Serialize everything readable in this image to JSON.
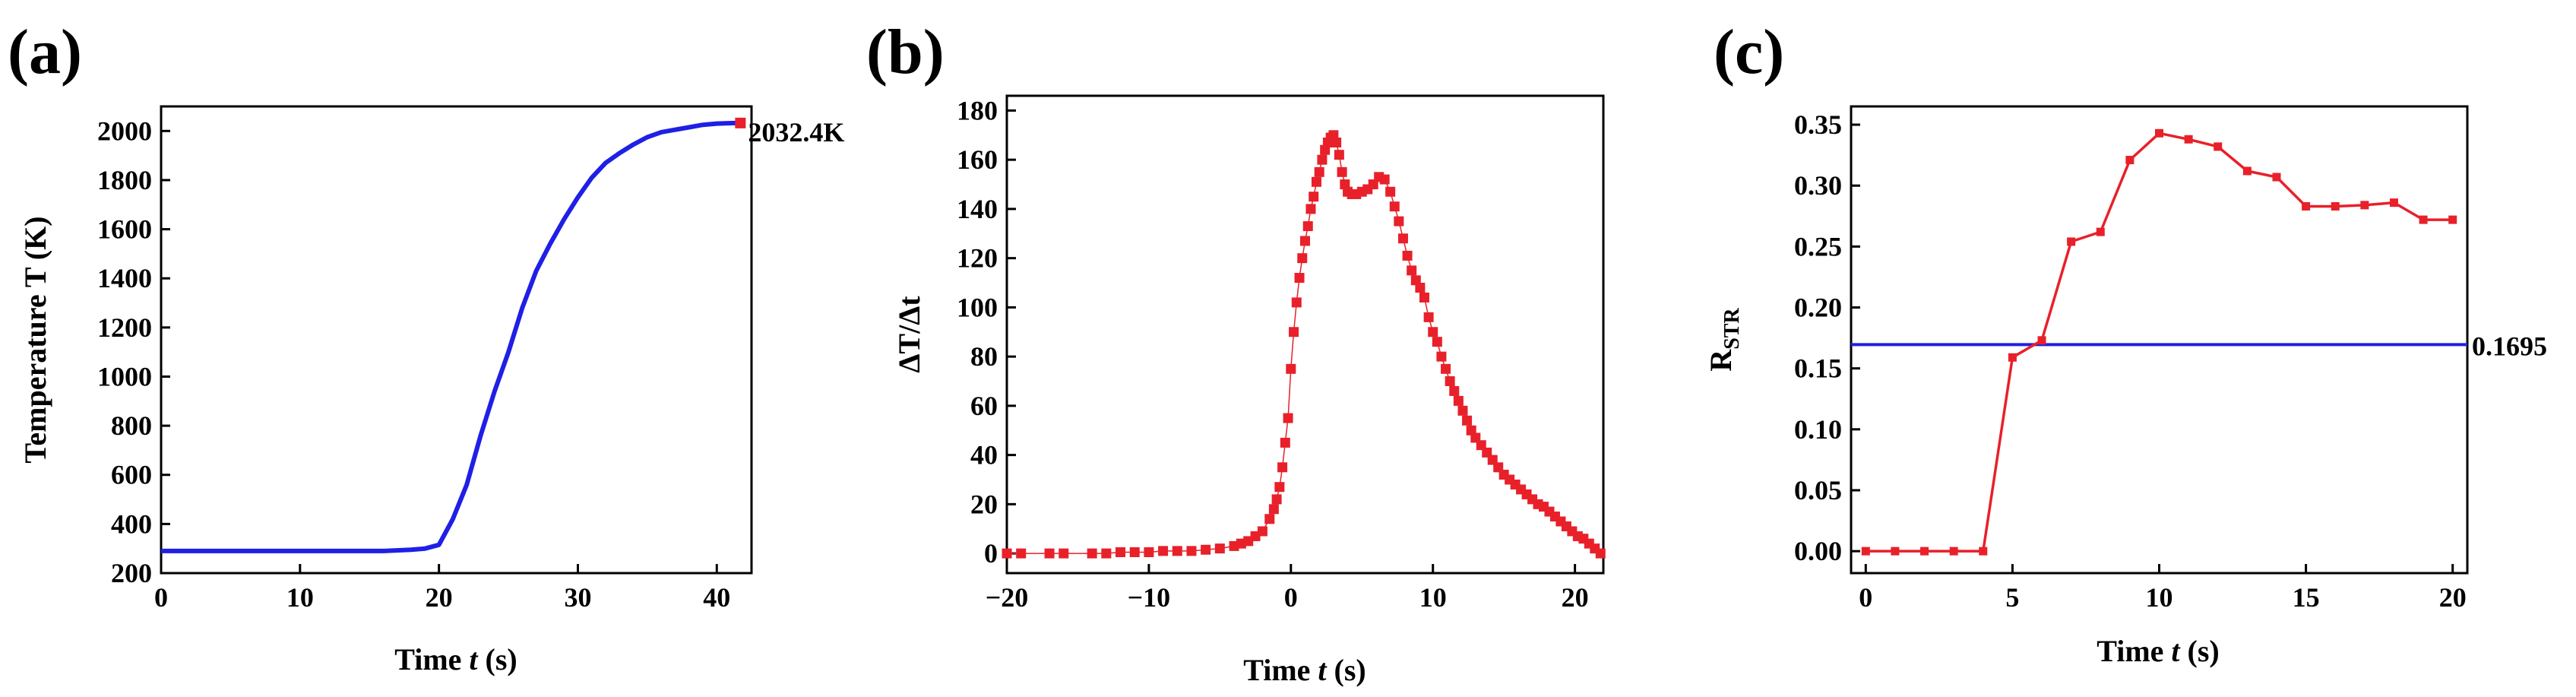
{
  "chart_data": [
    {
      "panel": "(a)",
      "type": "line",
      "xlabel_prefix": "Time ",
      "xlabel_var": "t",
      "xlabel_suffix": " (s)",
      "ylabel": "Temperature T (K)",
      "xlim": [
        0,
        42.5
      ],
      "ylim": [
        200,
        2100
      ],
      "xticks": [
        0,
        10,
        20,
        30,
        40
      ],
      "yticks": [
        200,
        400,
        600,
        800,
        1000,
        1200,
        1400,
        1600,
        1800,
        2000
      ],
      "color": "#1f1fe6",
      "marker_color": "#e8202a",
      "series": [
        {
          "name": "Temperature",
          "x": [
            0,
            2,
            4,
            6,
            8,
            10,
            12,
            14,
            16,
            18,
            19,
            20,
            21,
            22,
            23,
            24,
            25,
            26,
            27,
            28,
            29,
            30,
            31,
            32,
            33,
            34,
            35,
            36,
            37,
            38,
            39,
            40,
            41,
            41.7
          ],
          "y": [
            290,
            290,
            290,
            290,
            290,
            290,
            290,
            290,
            290,
            295,
            300,
            315,
            420,
            560,
            760,
            940,
            1100,
            1280,
            1430,
            1540,
            1640,
            1730,
            1810,
            1870,
            1910,
            1945,
            1975,
            1995,
            2005,
            2015,
            2025,
            2030,
            2032,
            2032.4
          ]
        }
      ],
      "annotation": {
        "x": 41.7,
        "y": 2032.4,
        "text": "2032.4K"
      }
    },
    {
      "panel": "(b)",
      "type": "scatter",
      "xlabel_prefix": "Time ",
      "xlabel_var": "t",
      "xlabel_suffix": " (s)",
      "ylabel": "ΔT/Δt",
      "xlim": [
        -20,
        22
      ],
      "ylim": [
        -8,
        186
      ],
      "xticks": [
        -20,
        -10,
        0,
        10,
        20
      ],
      "yticks": [
        0,
        20,
        40,
        60,
        80,
        100,
        120,
        140,
        160,
        180
      ],
      "color": "#e8202a",
      "series": [
        {
          "name": "ΔT/Δt",
          "x": [
            -20,
            -19,
            -17,
            -16,
            -14,
            -13,
            -12,
            -11,
            -10,
            -9,
            -8,
            -7,
            -6,
            -5,
            -4,
            -3.5,
            -3,
            -2.5,
            -2,
            -1.5,
            -1.2,
            -1,
            -0.8,
            -0.6,
            -0.4,
            -0.2,
            0,
            0.2,
            0.4,
            0.6,
            0.8,
            1,
            1.2,
            1.4,
            1.6,
            1.8,
            2,
            2.2,
            2.4,
            2.6,
            2.8,
            3,
            3.2,
            3.4,
            3.6,
            3.8,
            4,
            4.3,
            4.6,
            5,
            5.4,
            5.8,
            6.2,
            6.6,
            7,
            7.3,
            7.6,
            7.9,
            8.2,
            8.5,
            8.8,
            9.1,
            9.4,
            9.7,
            10,
            10.3,
            10.6,
            10.9,
            11.2,
            11.5,
            11.8,
            12.1,
            12.4,
            12.7,
            13,
            13.4,
            13.8,
            14.2,
            14.6,
            15,
            15.4,
            15.8,
            16.2,
            16.6,
            17,
            17.4,
            17.8,
            18.2,
            18.6,
            19,
            19.4,
            19.8,
            20.2,
            20.6,
            21,
            21.4,
            21.8
          ],
          "y": [
            0,
            0,
            0,
            0,
            0,
            0,
            0.5,
            0.5,
            0.5,
            1,
            1,
            1,
            1.5,
            2,
            3,
            4,
            5,
            7,
            9,
            14,
            18,
            22,
            27,
            35,
            45,
            55,
            75,
            90,
            102,
            112,
            120,
            127,
            133,
            140,
            145,
            151,
            155,
            160,
            164,
            167,
            169,
            170,
            167,
            162,
            155,
            150,
            147,
            146,
            146,
            147,
            148,
            150,
            153,
            152,
            147,
            141,
            135,
            128,
            121,
            115,
            111,
            108,
            104,
            96,
            90,
            86,
            80,
            75,
            70,
            66,
            62,
            58,
            54,
            50,
            47,
            44,
            41,
            38,
            35,
            32,
            30,
            28,
            26,
            24,
            22,
            20,
            19,
            17,
            15,
            13,
            11,
            9,
            7,
            6,
            4,
            2,
            0
          ]
        }
      ]
    },
    {
      "panel": "(c)",
      "type": "line",
      "xlabel_prefix": "Time ",
      "xlabel_var": "t",
      "xlabel_suffix": " (s)",
      "ylabel_main": "R",
      "ylabel_sub": "STR",
      "xlim": [
        -0.5,
        20.5
      ],
      "ylim": [
        -0.018,
        0.365
      ],
      "xticks": [
        0,
        5,
        10,
        15,
        20
      ],
      "yticks": [
        0.0,
        0.05,
        0.1,
        0.15,
        0.2,
        0.25,
        0.3,
        0.35
      ],
      "ytick_labels": [
        "0.00",
        "0.05",
        "0.10",
        "0.15",
        "0.20",
        "0.25",
        "0.30",
        "0.35"
      ],
      "color": "#e8202a",
      "series": [
        {
          "name": "R_STR",
          "x": [
            0,
            1,
            2,
            3,
            4,
            5,
            6,
            7,
            8,
            9,
            10,
            11,
            12,
            13,
            14,
            15,
            16,
            17,
            18,
            19,
            20
          ],
          "y": [
            0.0,
            0.0,
            0.0,
            0.0,
            0.0,
            0.159,
            0.173,
            0.254,
            0.262,
            0.321,
            0.343,
            0.338,
            0.332,
            0.312,
            0.307,
            0.283,
            0.283,
            0.284,
            0.286,
            0.272,
            0.272
          ]
        }
      ],
      "hline": {
        "y": 0.1695,
        "color": "#1f1fe6",
        "label": "0.1695"
      }
    }
  ]
}
